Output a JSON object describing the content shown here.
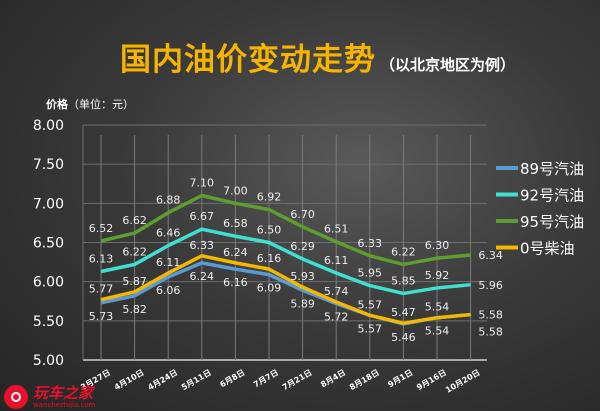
{
  "title": "国内油价变动走势",
  "subtitle": "（以北京地区为例）",
  "unit_label_bold": "价格",
  "unit_label": "（单位：元）",
  "logo": {
    "name": "玩车之家",
    "url": "wanchezhijia.com"
  },
  "chart_data": {
    "type": "line",
    "title": "国内油价变动走势",
    "ylabel": "价格（单位：元）",
    "ylim": [
      5.0,
      8.0
    ],
    "yticks": [
      "5.00",
      "5.50",
      "6.00",
      "6.50",
      "7.00",
      "7.50",
      "8.00"
    ],
    "grid": true,
    "legend_position": "right",
    "categories": [
      "3月27日",
      "4月10日",
      "4月24日",
      "5月11日",
      "6月8日",
      "7月7日",
      "7月21日",
      "8月4日",
      "8月18日",
      "9月1日",
      "9月16日",
      "10月20日"
    ],
    "series": [
      {
        "name": "89号汽油",
        "color": "#5b9bd5",
        "values": [
          5.73,
          5.82,
          6.06,
          6.24,
          6.16,
          6.09,
          5.89,
          5.72,
          5.57,
          5.46,
          5.54,
          5.58
        ]
      },
      {
        "name": "92号汽油",
        "color": "#40e0d0",
        "values": [
          6.13,
          6.22,
          6.46,
          6.67,
          6.58,
          6.5,
          6.29,
          6.11,
          5.95,
          5.85,
          5.92,
          5.96
        ]
      },
      {
        "name": "95号汽油",
        "color": "#5e9e2e",
        "values": [
          6.52,
          6.62,
          6.88,
          7.1,
          7.0,
          6.92,
          6.7,
          6.51,
          6.33,
          6.22,
          6.3,
          6.34
        ]
      },
      {
        "name": "0号柴油",
        "color": "#f5b800",
        "values": [
          5.77,
          5.87,
          6.11,
          6.33,
          6.24,
          6.16,
          5.93,
          5.74,
          5.57,
          5.47,
          5.54,
          5.58
        ]
      }
    ]
  }
}
